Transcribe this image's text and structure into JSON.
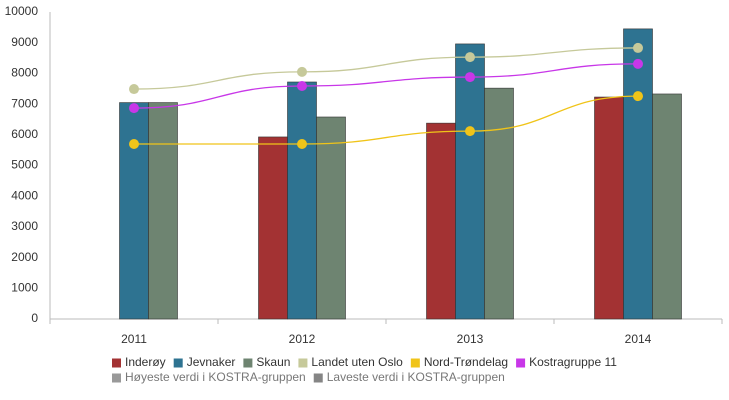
{
  "chart_data": {
    "type": "bar",
    "categories": [
      "2011",
      "2012",
      "2013",
      "2014"
    ],
    "ylim": [
      0,
      10000
    ],
    "yticks": [
      0,
      1000,
      2000,
      3000,
      4000,
      5000,
      6000,
      7000,
      8000,
      9000,
      10000
    ],
    "grid": false,
    "series": [
      {
        "name": "Inderøy",
        "type": "bar",
        "color": "#a33233",
        "values": [
          null,
          5930,
          6380,
          7230
        ]
      },
      {
        "name": "Jevnaker",
        "type": "bar",
        "color": "#2e7391",
        "values": [
          7050,
          7720,
          8960,
          9450
        ]
      },
      {
        "name": "Skaun",
        "type": "bar",
        "color": "#6e8471",
        "values": [
          7050,
          6580,
          7520,
          7330
        ]
      },
      {
        "name": "Landet uten Oslo",
        "type": "line",
        "color": "#c6c99a",
        "values": [
          7490,
          8050,
          8530,
          8830
        ]
      },
      {
        "name": "Nord-Trøndelag",
        "type": "line",
        "color": "#f0c419",
        "values": [
          5700,
          5700,
          6120,
          7260
        ]
      },
      {
        "name": "Kostragruppe 11",
        "type": "line",
        "color": "#c837e8",
        "values": [
          6870,
          7590,
          7880,
          8310
        ]
      },
      {
        "name": "Høyeste verdi i KOSTRA-gruppen",
        "type": "line",
        "color": "#999999",
        "values": [
          null,
          null,
          null,
          null
        ]
      },
      {
        "name": "Laveste verdi i KOSTRA-gruppen",
        "type": "line",
        "color": "#858585",
        "values": [
          null,
          null,
          null,
          null
        ]
      }
    ]
  }
}
